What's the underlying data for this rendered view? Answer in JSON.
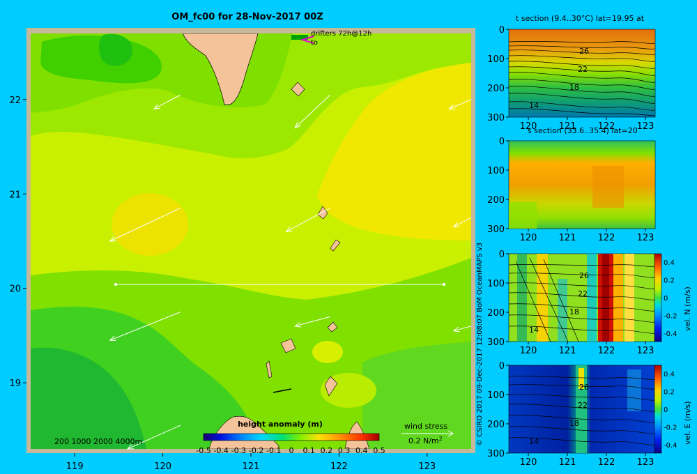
{
  "figure": {
    "title": "OM_fc00 for 28-Nov-2017 00Z",
    "credit": "© CSIRO 2017   09-Dec-2017 12:08:07 BoM OceanMAPS v3",
    "background": "#00ccff"
  },
  "map": {
    "drifters_label_1": "drifters 72h@12h",
    "drifters_label_2": "to",
    "depth_legend": "200  1000  2000  4000m",
    "wind_label_1": "wind stress",
    "wind_label_2": "0.2 N/m",
    "wind_label_sup": "2",
    "colorbar_title": "height anomaly  (m)"
  },
  "panels": {
    "t_title": "t section (9.4..30°C) lat=19.95 at",
    "s_title": "s section (33.6..35.4) lat=20",
    "n_label": "vel. N  (m/s)",
    "e_label": "vel. E  (m/s)"
  },
  "chart_data": [
    {
      "type": "heatmap",
      "name": "height anomaly map",
      "title": "OM_fc00 for 28-Nov-2017 00Z",
      "x_ticks": [
        "119",
        "120",
        "121",
        "122",
        "123"
      ],
      "y_ticks": [
        "22",
        "21",
        "20",
        "19"
      ],
      "xlim": [
        118.5,
        123.5
      ],
      "ylim": [
        18.3,
        22.7
      ],
      "section_line": {
        "lon": [
          119.5,
          123.0
        ],
        "lat": 20.0
      },
      "colorbar": {
        "min": -0.5,
        "max": 0.5,
        "tick_labels": [
          "-0.5",
          "-0.4",
          "-0.3",
          "-0.2",
          "-0.1",
          "0",
          "0.1",
          "0.2",
          "0.3",
          "0.4",
          "0.5"
        ]
      },
      "wind_arrows": [
        {
          "from": [
            120.2,
            22.05
          ],
          "to": [
            119.9,
            21.9
          ]
        },
        {
          "from": [
            121.9,
            22.05
          ],
          "to": [
            121.5,
            21.7
          ]
        },
        {
          "from": [
            123.5,
            22.0
          ],
          "to": [
            123.25,
            21.9
          ]
        },
        {
          "from": [
            120.2,
            20.85
          ],
          "to": [
            119.4,
            20.5
          ]
        },
        {
          "from": [
            121.9,
            20.85
          ],
          "to": [
            121.4,
            20.6
          ]
        },
        {
          "from": [
            123.5,
            20.75
          ],
          "to": [
            123.3,
            20.65
          ]
        },
        {
          "from": [
            120.2,
            19.75
          ],
          "to": [
            119.4,
            19.45
          ]
        },
        {
          "from": [
            121.9,
            19.7
          ],
          "to": [
            121.5,
            19.6
          ]
        },
        {
          "from": [
            123.5,
            19.6
          ],
          "to": [
            123.3,
            19.55
          ]
        },
        {
          "from": [
            120.2,
            18.55
          ],
          "to": [
            119.6,
            18.3
          ]
        }
      ]
    },
    {
      "type": "heatmap",
      "name": "temperature section",
      "title": "t section (9.4..30°C) lat=19.95 at",
      "x_ticks": [
        "120",
        "121",
        "122",
        "123"
      ],
      "y_ticks": [
        "0",
        "100",
        "200",
        "300"
      ],
      "xlim": [
        119.5,
        123.25
      ],
      "ylim": [
        300,
        0
      ],
      "contour_labels": [
        "26",
        "22",
        "18",
        "14"
      ]
    },
    {
      "type": "heatmap",
      "name": "salinity section",
      "title": "s section (33.6..35.4) lat=20",
      "x_ticks": [
        "120",
        "121",
        "122",
        "123"
      ],
      "y_ticks": [
        "0",
        "100",
        "200",
        "300"
      ],
      "xlim": [
        119.5,
        123.25
      ],
      "ylim": [
        300,
        0
      ]
    },
    {
      "type": "heatmap",
      "name": "north velocity section",
      "x_ticks": [
        "120",
        "121",
        "122",
        "123"
      ],
      "y_ticks": [
        "0",
        "100",
        "200",
        "300"
      ],
      "xlim": [
        119.5,
        123.25
      ],
      "ylim": [
        300,
        0
      ],
      "contour_labels": [
        "26",
        "22",
        "18",
        "14"
      ],
      "colorbar": {
        "min": -0.4,
        "max": 0.4,
        "tick_labels": [
          "0.4",
          "0.2",
          "0",
          "-0.2",
          "-0.4"
        ],
        "label": "vel. N  (m/s)"
      }
    },
    {
      "type": "heatmap",
      "name": "east velocity section",
      "x_ticks": [
        "120",
        "121",
        "122",
        "123"
      ],
      "y_ticks": [
        "0",
        "100",
        "200",
        "300"
      ],
      "xlim": [
        119.5,
        123.25
      ],
      "ylim": [
        300,
        0
      ],
      "contour_labels": [
        "26",
        "22",
        "18",
        "14"
      ],
      "colorbar": {
        "min": -0.4,
        "max": 0.4,
        "tick_labels": [
          "0.4",
          "0.2",
          "0",
          "-0.2",
          "-0.4"
        ],
        "label": "vel. E  (m/s)"
      }
    }
  ]
}
